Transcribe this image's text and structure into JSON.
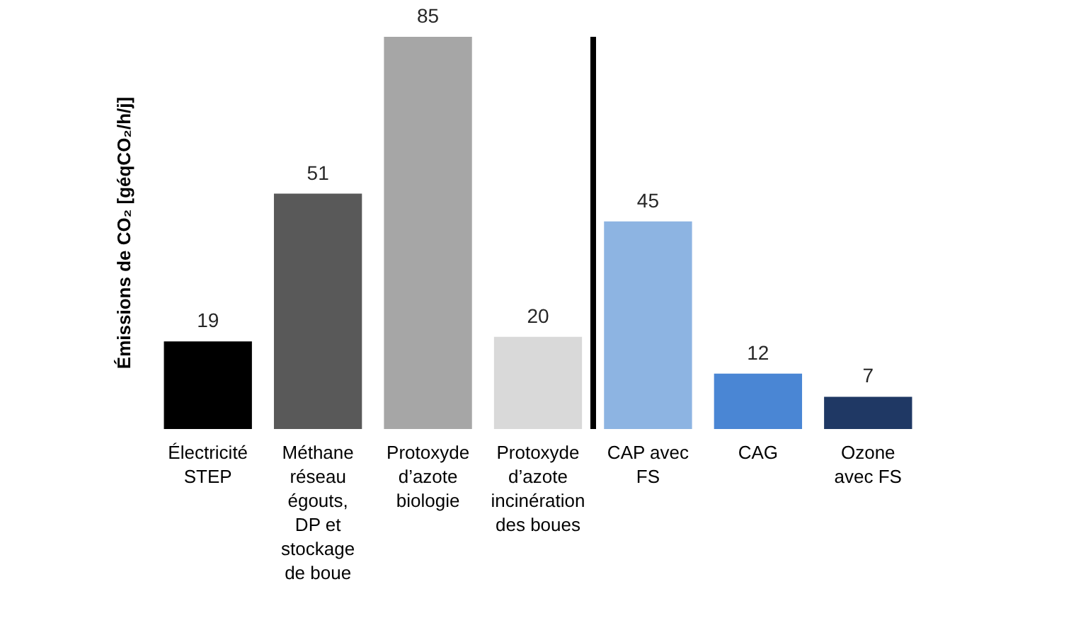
{
  "chart_data": {
    "type": "bar",
    "ylabel": "Émissions de CO₂ [géqCO₂/h/j]",
    "categories": [
      "Électricité STEP",
      "Méthane réseau égouts, DP et stockage de boue",
      "Protoxyde d’azote biologie",
      "Protoxyde d’azote incinération des boues",
      "CAP avec FS",
      "CAG",
      "Ozone avec FS"
    ],
    "values": [
      19,
      51,
      85,
      20,
      45,
      12,
      7
    ],
    "colors": [
      "#000000",
      "#595959",
      "#a6a6a6",
      "#d9d9d9",
      "#8db4e2",
      "#4a86d4",
      "#1f3864"
    ],
    "data_labels": true,
    "tick_labels": "x"
  }
}
